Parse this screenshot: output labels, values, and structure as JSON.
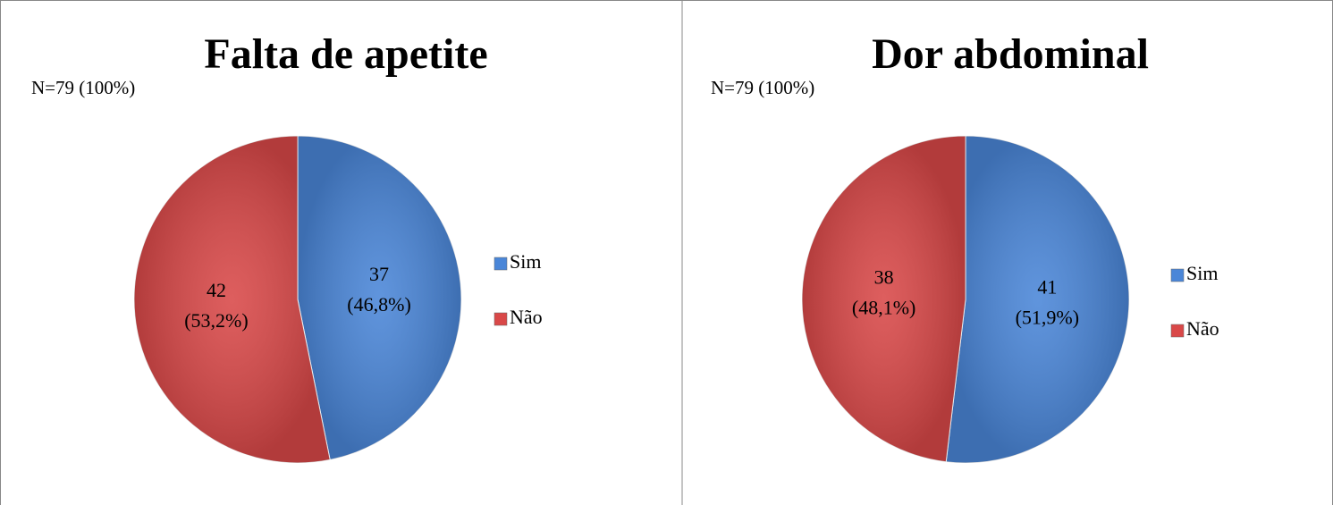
{
  "chart_data": [
    {
      "type": "pie",
      "title": "Falta de apetite",
      "subtitle": "N=79 (100%)",
      "categories": [
        "Sim",
        "Não"
      ],
      "values": [
        37,
        42
      ],
      "percents": [
        46.8,
        53.2
      ],
      "percent_labels": [
        "(46,8%)",
        "(53,2%)"
      ],
      "colors": [
        "#4a86d8",
        "#d94848"
      ],
      "legend": "right"
    },
    {
      "type": "pie",
      "title": "Dor abdominal",
      "subtitle": "N=79 (100%)",
      "categories": [
        "Sim",
        "Não"
      ],
      "values": [
        41,
        38
      ],
      "percents": [
        51.9,
        48.1
      ],
      "percent_labels": [
        "(51,9%)",
        "(48,1%)"
      ],
      "colors": [
        "#4a86d8",
        "#d94848"
      ],
      "legend": "right"
    }
  ]
}
